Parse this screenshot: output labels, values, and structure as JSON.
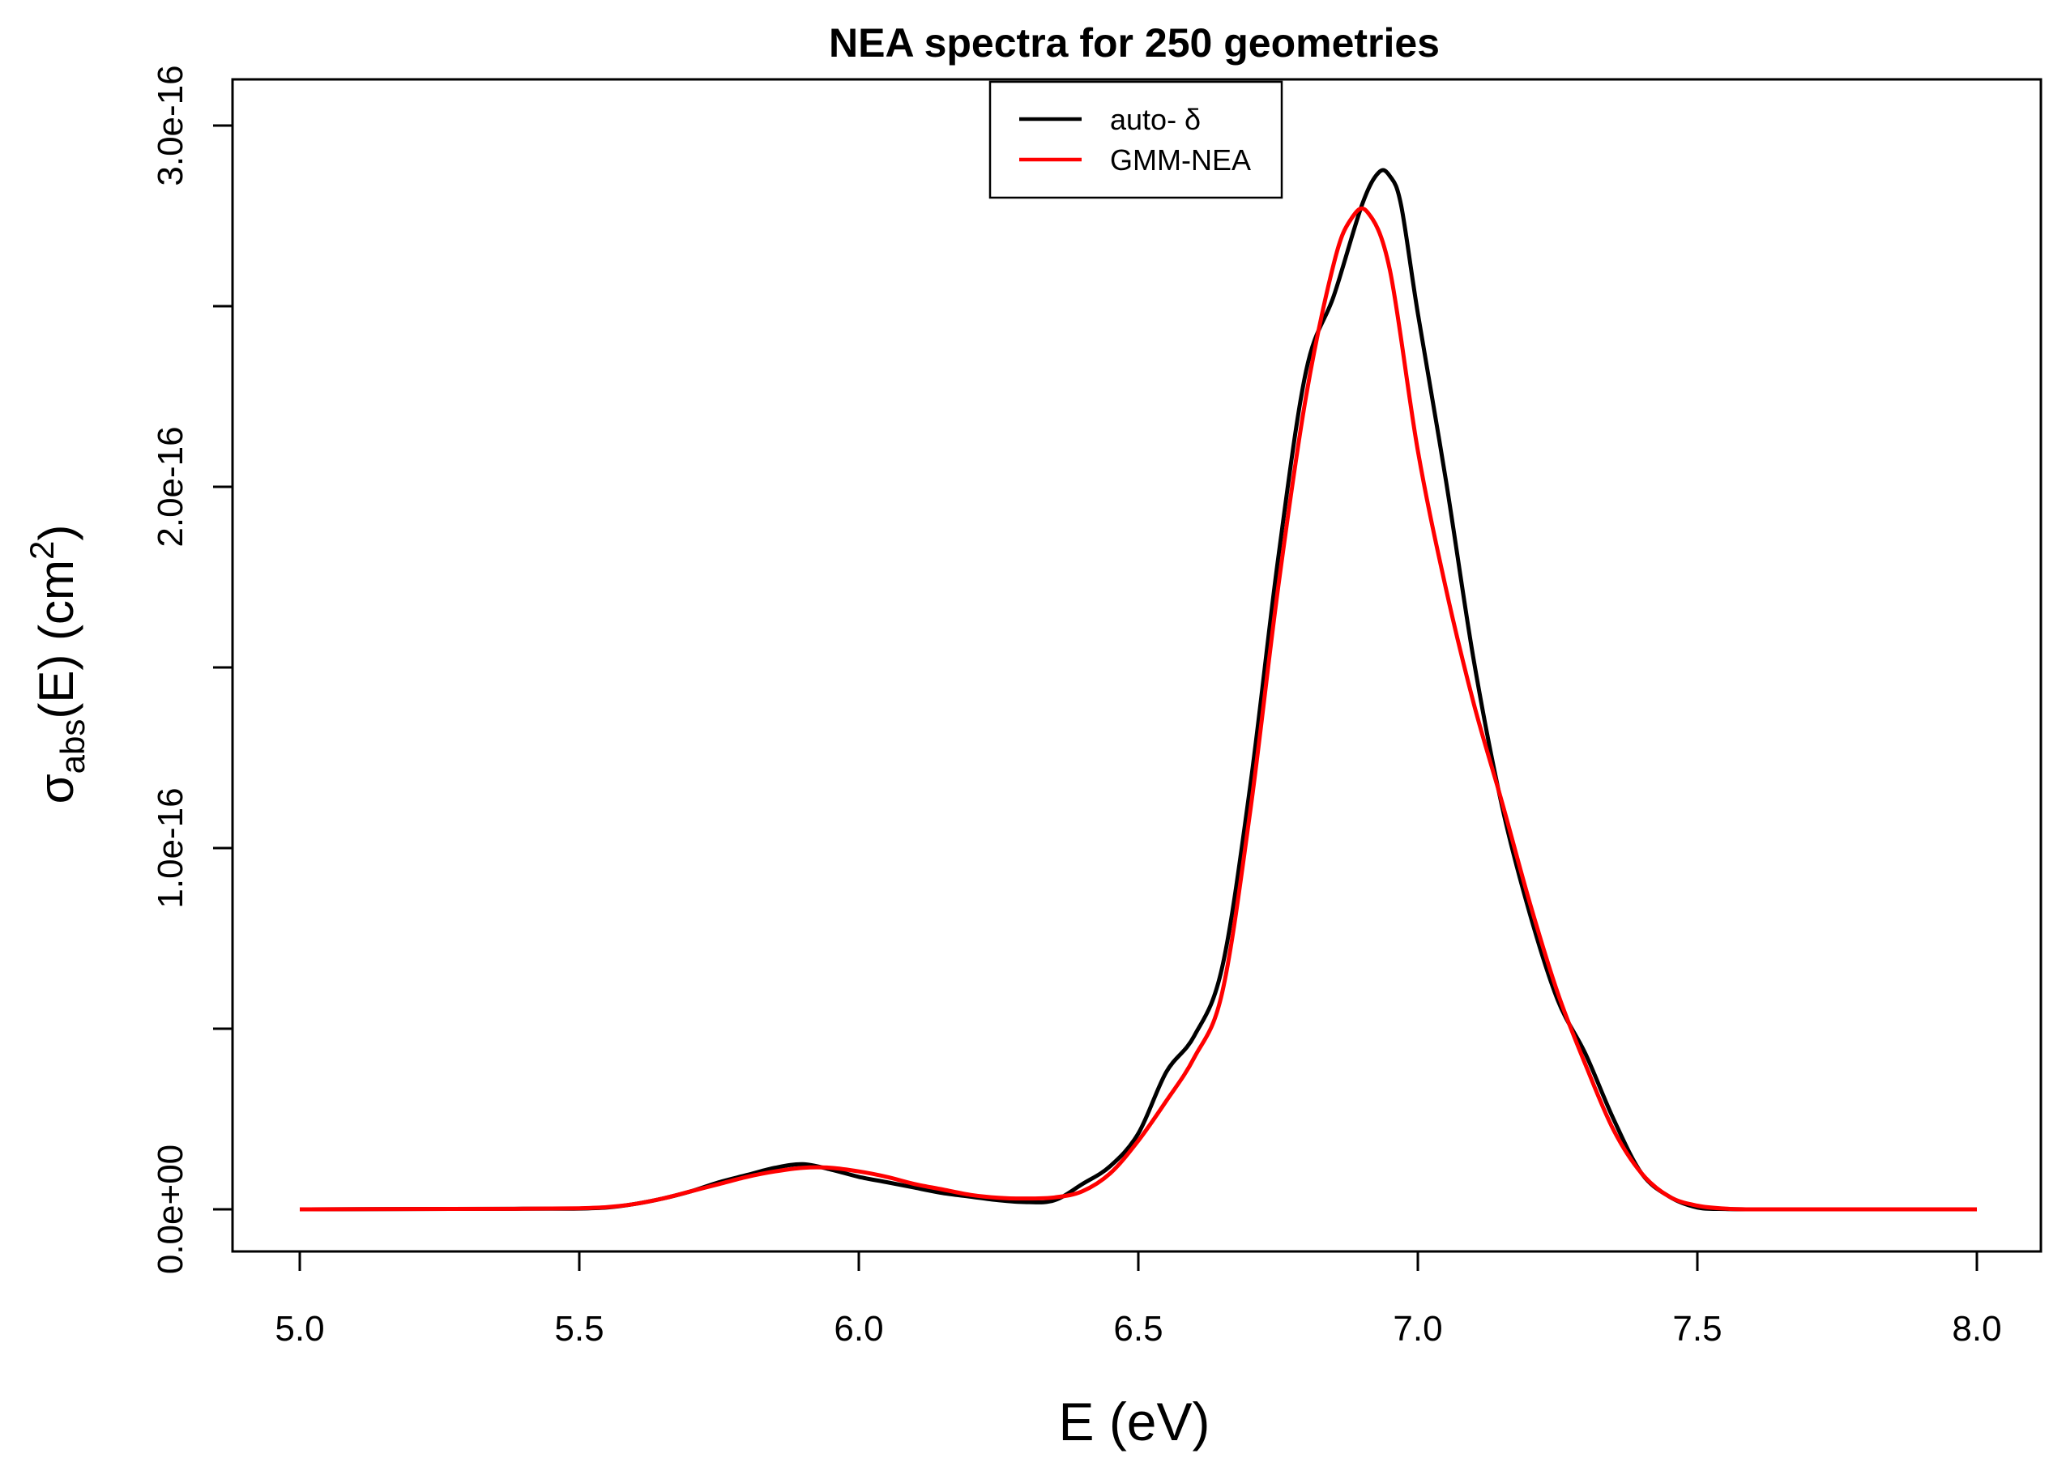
{
  "chart_data": {
    "type": "line",
    "title": "NEA spectra for 250 geometries",
    "xlabel": "E (eV)",
    "ylabel": {
      "symbol": "σ",
      "subscript": "abs",
      "main": "(E) (cm",
      "superscript": "2",
      "close": ")"
    },
    "xlim": [
      5.0,
      8.0
    ],
    "ylim": [
      0,
      3e-16
    ],
    "x_ticks": [
      5.0,
      5.5,
      6.0,
      6.5,
      7.0,
      7.5,
      8.0
    ],
    "x_tick_labels": [
      "5.0",
      "5.5",
      "6.0",
      "6.5",
      "7.0",
      "7.5",
      "8.0"
    ],
    "y_ticks": [
      0,
      5e-17,
      1e-16,
      1.5e-16,
      2e-16,
      2.5e-16,
      3e-16
    ],
    "y_tick_labels": [
      "0.0e+00",
      "",
      "1.0e-16",
      "",
      "2.0e-16",
      "",
      "3.0e-16"
    ],
    "grid": false,
    "legend_position": "top-center",
    "series": [
      {
        "name": "auto- δ",
        "color": "#000000",
        "x": [
          5.0,
          5.2,
          5.4,
          5.5,
          5.55,
          5.6,
          5.65,
          5.7,
          5.75,
          5.8,
          5.85,
          5.9,
          5.95,
          6.0,
          6.05,
          6.1,
          6.15,
          6.2,
          6.25,
          6.3,
          6.35,
          6.4,
          6.45,
          6.5,
          6.55,
          6.6,
          6.65,
          6.7,
          6.75,
          6.8,
          6.85,
          6.9,
          6.93,
          6.95,
          6.97,
          7.0,
          7.05,
          7.1,
          7.15,
          7.2,
          7.25,
          7.3,
          7.35,
          7.4,
          7.45,
          7.5,
          7.55,
          7.6,
          7.7,
          7.8,
          8.0
        ],
        "y": [
          0,
          1e-19,
          1.5e-19,
          2e-19,
          5e-19,
          1.5e-18,
          3e-18,
          5e-18,
          7.5e-18,
          9.5e-18,
          1.15e-17,
          1.25e-17,
          1.1e-17,
          9e-18,
          7.5e-18,
          6e-18,
          4.5e-18,
          3.5e-18,
          2.5e-18,
          2e-18,
          2.5e-18,
          7e-18,
          1.2e-17,
          2.1e-17,
          3.8e-17,
          4.8e-17,
          6.7e-17,
          1.17e-16,
          1.8e-16,
          2.32e-16,
          2.53e-16,
          2.78e-16,
          2.87e-16,
          2.86e-16,
          2.78e-16,
          2.48e-16,
          2.02e-16,
          1.52e-16,
          1.12e-16,
          8.2e-17,
          5.8e-17,
          4.3e-17,
          2.5e-17,
          1e-17,
          3.5e-18,
          5e-19,
          1e-19,
          0,
          0,
          0,
          0
        ]
      },
      {
        "name": "GMM-NEA",
        "color": "#ff0000",
        "x": [
          5.0,
          5.2,
          5.4,
          5.5,
          5.55,
          5.6,
          5.65,
          5.7,
          5.75,
          5.8,
          5.85,
          5.9,
          5.95,
          6.0,
          6.05,
          6.1,
          6.15,
          6.2,
          6.25,
          6.3,
          6.35,
          6.4,
          6.45,
          6.5,
          6.55,
          6.6,
          6.65,
          6.7,
          6.75,
          6.8,
          6.85,
          6.88,
          6.91,
          6.95,
          7.0,
          7.05,
          7.1,
          7.15,
          7.2,
          7.25,
          7.3,
          7.35,
          7.4,
          7.45,
          7.5,
          7.55,
          7.6,
          7.7,
          7.8,
          8.0
        ],
        "y": [
          0,
          1e-19,
          1.5e-19,
          3e-19,
          6e-19,
          1.5e-18,
          3e-18,
          5e-18,
          7e-18,
          9e-18,
          1.05e-17,
          1.15e-17,
          1.15e-17,
          1.05e-17,
          9e-18,
          7e-18,
          5.5e-18,
          4e-18,
          3.2e-18,
          3e-18,
          3.3e-18,
          5e-18,
          1e-17,
          1.9e-17,
          3e-17,
          4.2e-17,
          6e-17,
          1.1e-16,
          1.72e-16,
          2.25e-16,
          2.62e-16,
          2.74e-16,
          2.76e-16,
          2.6e-16,
          2.1e-16,
          1.72e-16,
          1.4e-16,
          1.13e-16,
          8.5e-17,
          6e-17,
          4e-17,
          2.2e-17,
          1e-17,
          3.5e-18,
          1e-18,
          2e-19,
          0,
          0,
          0,
          0
        ]
      }
    ]
  }
}
